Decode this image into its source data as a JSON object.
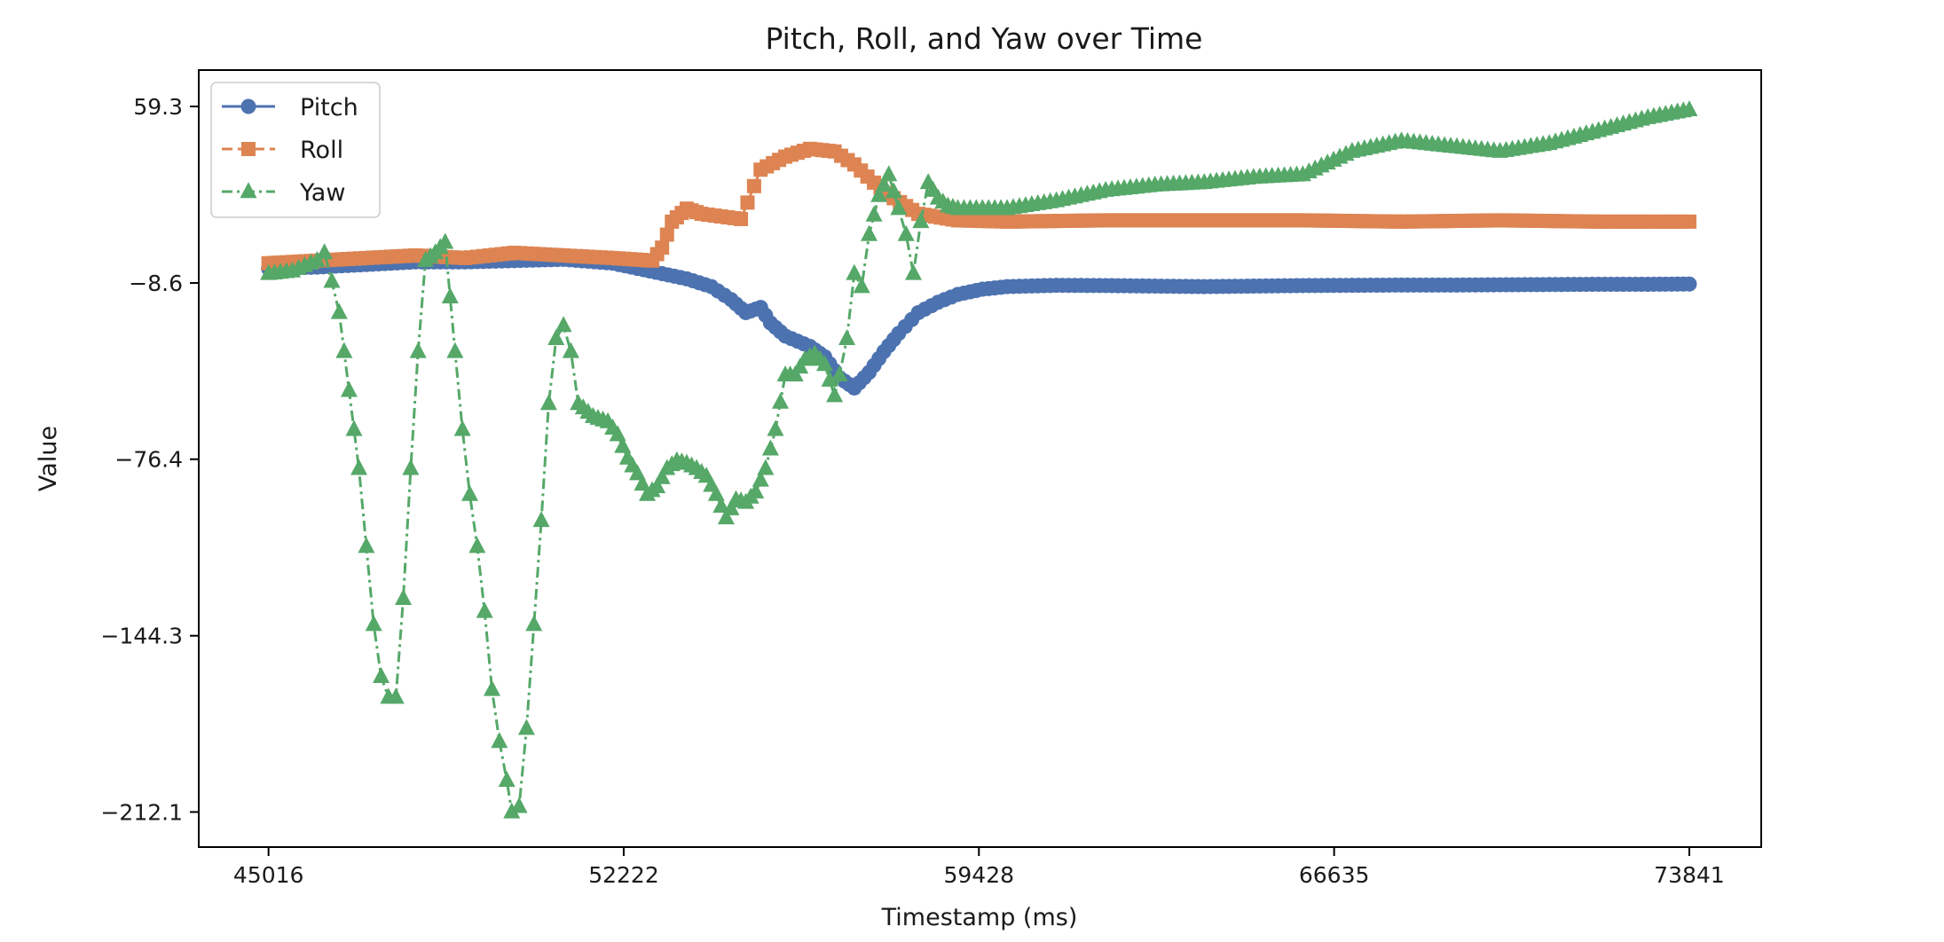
{
  "chart_data": {
    "type": "line",
    "title": "Pitch, Roll, and Yaw over Time",
    "xlabel": "Timestamp (ms)",
    "ylabel": "Value",
    "xlim": [
      43600,
      75300
    ],
    "ylim": [
      -225.6,
      73.3
    ],
    "x_ticks": [
      45016,
      52222,
      59428,
      66635,
      73841
    ],
    "x_tick_labels": [
      "45016",
      "52222",
      "59428",
      "66635",
      "73841"
    ],
    "y_ticks": [
      59.3,
      -8.6,
      -76.4,
      -144.3,
      -212.1
    ],
    "y_tick_labels": [
      "59.3",
      "−8.6",
      "−76.4",
      "−144.3",
      "−212.1"
    ],
    "grid": false,
    "legend_position": "top-left",
    "series": [
      {
        "name": "Pitch",
        "color": "#4c72b0",
        "marker": "circle",
        "linestyle": "solid",
        "points": [
          [
            45016,
            -3
          ],
          [
            46000,
            -2.5
          ],
          [
            47000,
            -1.5
          ],
          [
            48000,
            -0.5
          ],
          [
            49000,
            -0.5
          ],
          [
            50000,
            0
          ],
          [
            51000,
            0.5
          ],
          [
            52000,
            -1
          ],
          [
            52500,
            -3
          ],
          [
            53000,
            -5
          ],
          [
            53500,
            -7
          ],
          [
            54000,
            -10
          ],
          [
            54400,
            -15
          ],
          [
            54700,
            -20
          ],
          [
            55000,
            -18
          ],
          [
            55200,
            -24
          ],
          [
            55500,
            -29
          ],
          [
            56000,
            -33
          ],
          [
            56300,
            -37
          ],
          [
            56600,
            -45
          ],
          [
            56900,
            -49
          ],
          [
            57200,
            -43
          ],
          [
            57500,
            -35
          ],
          [
            57800,
            -28
          ],
          [
            58200,
            -20
          ],
          [
            58600,
            -16
          ],
          [
            59000,
            -13
          ],
          [
            59500,
            -11
          ],
          [
            60000,
            -10
          ],
          [
            61000,
            -9.5
          ],
          [
            62000,
            -9.6
          ],
          [
            63000,
            -9.8
          ],
          [
            64000,
            -10
          ],
          [
            65000,
            -9.8
          ],
          [
            66000,
            -9.6
          ],
          [
            67000,
            -9.5
          ],
          [
            68000,
            -9.4
          ],
          [
            69000,
            -9.4
          ],
          [
            70000,
            -9.3
          ],
          [
            71000,
            -9.2
          ],
          [
            72000,
            -9.1
          ],
          [
            73000,
            -9.1
          ],
          [
            73841,
            -9
          ]
        ]
      },
      {
        "name": "Roll",
        "color": "#dd8452",
        "marker": "square",
        "linestyle": "dashed",
        "points": [
          [
            45016,
            -1
          ],
          [
            46000,
            0
          ],
          [
            47000,
            1
          ],
          [
            48000,
            2
          ],
          [
            49000,
            1
          ],
          [
            50000,
            3
          ],
          [
            51000,
            2
          ],
          [
            52000,
            1
          ],
          [
            52800,
            0
          ],
          [
            53000,
            5
          ],
          [
            53200,
            15
          ],
          [
            53500,
            20
          ],
          [
            53800,
            18
          ],
          [
            54200,
            17
          ],
          [
            54600,
            16
          ],
          [
            55000,
            35
          ],
          [
            55500,
            40
          ],
          [
            56000,
            43
          ],
          [
            56500,
            42
          ],
          [
            56900,
            37
          ],
          [
            57300,
            30
          ],
          [
            57700,
            24
          ],
          [
            58200,
            18
          ],
          [
            59000,
            15.5
          ],
          [
            60000,
            15
          ],
          [
            62000,
            15.5
          ],
          [
            64000,
            15.5
          ],
          [
            66000,
            15.5
          ],
          [
            68000,
            15
          ],
          [
            70000,
            15.5
          ],
          [
            72000,
            15
          ],
          [
            73841,
            15
          ]
        ]
      },
      {
        "name": "Yaw",
        "color": "#55a868",
        "marker": "triangle",
        "linestyle": "dashdot",
        "points": [
          [
            45016,
            -5
          ],
          [
            45500,
            -4
          ],
          [
            46000,
            0
          ],
          [
            46150,
            3
          ],
          [
            46300,
            -8
          ],
          [
            46450,
            -20
          ],
          [
            46650,
            -50
          ],
          [
            46850,
            -80
          ],
          [
            47000,
            -110
          ],
          [
            47150,
            -140
          ],
          [
            47300,
            -160
          ],
          [
            47450,
            -168
          ],
          [
            47600,
            -168
          ],
          [
            47750,
            -130
          ],
          [
            47900,
            -80
          ],
          [
            48050,
            -35
          ],
          [
            48200,
            0
          ],
          [
            48400,
            3
          ],
          [
            48600,
            7
          ],
          [
            48800,
            -35
          ],
          [
            48950,
            -65
          ],
          [
            49100,
            -90
          ],
          [
            49250,
            -110
          ],
          [
            49400,
            -135
          ],
          [
            49550,
            -165
          ],
          [
            49700,
            -185
          ],
          [
            49850,
            -200
          ],
          [
            49950,
            -212.1
          ],
          [
            50100,
            -210
          ],
          [
            50250,
            -180
          ],
          [
            50400,
            -140
          ],
          [
            50550,
            -100
          ],
          [
            50700,
            -55
          ],
          [
            50850,
            -30
          ],
          [
            51000,
            -25
          ],
          [
            51150,
            -35
          ],
          [
            51300,
            -55
          ],
          [
            51600,
            -60
          ],
          [
            51900,
            -62
          ],
          [
            52100,
            -67
          ],
          [
            52300,
            -76
          ],
          [
            52500,
            -82
          ],
          [
            52700,
            -90
          ],
          [
            52900,
            -87
          ],
          [
            53100,
            -80
          ],
          [
            53300,
            -77
          ],
          [
            53500,
            -78
          ],
          [
            53700,
            -80
          ],
          [
            53900,
            -83
          ],
          [
            54100,
            -90
          ],
          [
            54300,
            -99
          ],
          [
            54500,
            -92
          ],
          [
            54700,
            -93
          ],
          [
            54900,
            -89
          ],
          [
            55100,
            -80
          ],
          [
            55300,
            -65
          ],
          [
            55500,
            -44
          ],
          [
            55700,
            -44
          ],
          [
            55900,
            -38
          ],
          [
            56100,
            -36
          ],
          [
            56300,
            -40
          ],
          [
            56500,
            -52
          ],
          [
            56600,
            -44
          ],
          [
            56750,
            -30
          ],
          [
            56900,
            -5
          ],
          [
            57050,
            -10
          ],
          [
            57200,
            10
          ],
          [
            57400,
            25
          ],
          [
            57600,
            33
          ],
          [
            57800,
            20
          ],
          [
            57950,
            10
          ],
          [
            58100,
            -5
          ],
          [
            58250,
            15
          ],
          [
            58400,
            30
          ],
          [
            58600,
            24
          ],
          [
            58800,
            21
          ],
          [
            59000,
            20
          ],
          [
            60000,
            20
          ],
          [
            61000,
            23
          ],
          [
            62000,
            27
          ],
          [
            63000,
            29
          ],
          [
            64000,
            30
          ],
          [
            65000,
            32
          ],
          [
            66000,
            33
          ],
          [
            67000,
            42
          ],
          [
            68000,
            46
          ],
          [
            69000,
            44
          ],
          [
            70000,
            42
          ],
          [
            71000,
            45
          ],
          [
            72000,
            50
          ],
          [
            73000,
            55
          ],
          [
            73841,
            58
          ]
        ]
      }
    ]
  }
}
